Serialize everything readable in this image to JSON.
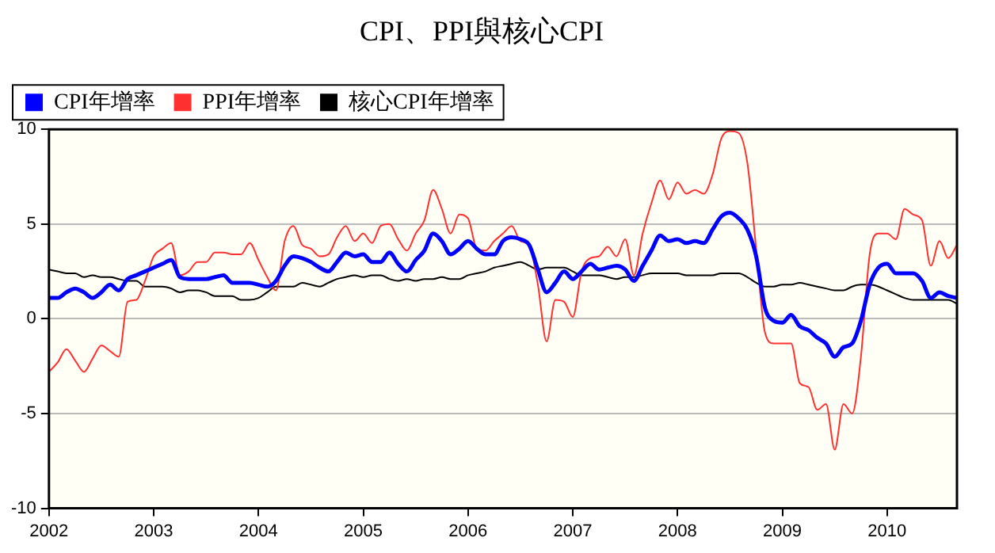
{
  "chart_data": {
    "type": "line",
    "title": "CPI、PPI與核心CPI",
    "x": [
      "2002-01",
      "2002-02",
      "2002-03",
      "2002-04",
      "2002-05",
      "2002-06",
      "2002-07",
      "2002-08",
      "2002-09",
      "2002-10",
      "2002-11",
      "2002-12",
      "2003-01",
      "2003-02",
      "2003-03",
      "2003-04",
      "2003-05",
      "2003-06",
      "2003-07",
      "2003-08",
      "2003-09",
      "2003-10",
      "2003-11",
      "2003-12",
      "2004-01",
      "2004-02",
      "2004-03",
      "2004-04",
      "2004-05",
      "2004-06",
      "2004-07",
      "2004-08",
      "2004-09",
      "2004-10",
      "2004-11",
      "2004-12",
      "2005-01",
      "2005-02",
      "2005-03",
      "2005-04",
      "2005-05",
      "2005-06",
      "2005-07",
      "2005-08",
      "2005-09",
      "2005-10",
      "2005-11",
      "2005-12",
      "2006-01",
      "2006-02",
      "2006-03",
      "2006-04",
      "2006-05",
      "2006-06",
      "2006-07",
      "2006-08",
      "2006-09",
      "2006-10",
      "2006-11",
      "2006-12",
      "2007-01",
      "2007-02",
      "2007-03",
      "2007-04",
      "2007-05",
      "2007-06",
      "2007-07",
      "2007-08",
      "2007-09",
      "2007-10",
      "2007-11",
      "2007-12",
      "2008-01",
      "2008-02",
      "2008-03",
      "2008-04",
      "2008-05",
      "2008-06",
      "2008-07",
      "2008-08",
      "2008-09",
      "2008-10",
      "2008-11",
      "2008-12",
      "2009-01",
      "2009-02",
      "2009-03",
      "2009-04",
      "2009-05",
      "2009-06",
      "2009-07",
      "2009-08",
      "2009-09",
      "2009-10",
      "2009-11",
      "2009-12",
      "2010-01",
      "2010-02",
      "2010-03",
      "2010-04",
      "2010-05",
      "2010-06",
      "2010-07",
      "2010-08",
      "2010-09"
    ],
    "series": [
      {
        "name": "CPI年增率",
        "color": "#0000ff",
        "values": [
          1.1,
          1.1,
          1.4,
          1.6,
          1.4,
          1.1,
          1.4,
          1.8,
          1.5,
          2.1,
          2.3,
          2.5,
          2.7,
          2.9,
          3.1,
          2.2,
          2.1,
          2.1,
          2.1,
          2.2,
          2.3,
          1.9,
          1.9,
          1.9,
          1.8,
          1.7,
          2.0,
          2.8,
          3.3,
          3.2,
          3.0,
          2.7,
          2.5,
          3.0,
          3.5,
          3.3,
          3.4,
          3.0,
          3.0,
          3.5,
          2.9,
          2.5,
          3.1,
          3.6,
          4.5,
          4.1,
          3.4,
          3.7,
          4.1,
          3.7,
          3.4,
          3.4,
          4.1,
          4.3,
          4.2,
          3.9,
          2.6,
          1.4,
          1.9,
          2.5,
          2.1,
          2.5,
          2.9,
          2.6,
          2.7,
          2.8,
          2.6,
          2.0,
          2.8,
          3.6,
          4.4,
          4.1,
          4.2,
          4.0,
          4.1,
          4.0,
          4.7,
          5.4,
          5.6,
          5.3,
          4.7,
          3.3,
          0.6,
          -0.1,
          -0.2,
          0.2,
          -0.4,
          -0.6,
          -1.0,
          -1.3,
          -2.0,
          -1.5,
          -1.3,
          -0.1,
          1.8,
          2.7,
          2.9,
          2.4,
          2.4,
          2.4,
          2.0,
          1.1,
          1.4,
          1.2,
          1.1
        ]
      },
      {
        "name": "PPI年增率",
        "color": "#ff3030",
        "values": [
          -2.8,
          -2.3,
          -1.6,
          -2.2,
          -2.8,
          -2.1,
          -1.4,
          -1.7,
          -2.0,
          0.9,
          1.0,
          2.0,
          3.3,
          3.7,
          4.0,
          2.3,
          2.5,
          3.0,
          3.0,
          3.5,
          3.5,
          3.4,
          3.4,
          4.0,
          3.1,
          2.2,
          1.5,
          4.1,
          4.9,
          3.9,
          3.7,
          3.3,
          3.4,
          4.3,
          4.9,
          4.1,
          4.5,
          4.0,
          4.9,
          5.0,
          4.2,
          3.6,
          4.5,
          5.2,
          6.8,
          5.8,
          4.5,
          5.5,
          5.3,
          3.7,
          3.6,
          4.1,
          4.5,
          4.9,
          4.1,
          3.9,
          1.8,
          -1.2,
          1.0,
          0.9,
          0.1,
          2.5,
          3.2,
          3.3,
          3.8,
          3.3,
          4.2,
          2.3,
          4.5,
          6.1,
          7.3,
          6.3,
          7.2,
          6.6,
          6.8,
          6.6,
          7.6,
          9.5,
          9.9,
          9.8,
          8.2,
          3.7,
          -0.7,
          -1.3,
          -1.3,
          -1.3,
          -3.4,
          -3.6,
          -4.8,
          -4.5,
          -6.9,
          -4.5,
          -5.0,
          -2.0,
          3.4,
          4.5,
          4.5,
          4.2,
          5.8,
          5.5,
          5.2,
          2.8,
          4.1,
          3.2,
          3.9
        ]
      },
      {
        "name": "核心CPI年增率",
        "color": "#000000",
        "values": [
          2.6,
          2.5,
          2.4,
          2.4,
          2.2,
          2.3,
          2.2,
          2.2,
          2.1,
          2.0,
          2.0,
          1.7,
          1.7,
          1.7,
          1.6,
          1.4,
          1.5,
          1.5,
          1.4,
          1.2,
          1.2,
          1.2,
          1.0,
          1.0,
          1.1,
          1.4,
          1.7,
          1.7,
          1.7,
          1.9,
          1.8,
          1.7,
          1.9,
          2.1,
          2.2,
          2.3,
          2.2,
          2.3,
          2.3,
          2.1,
          2.0,
          2.1,
          2.0,
          2.1,
          2.1,
          2.2,
          2.1,
          2.1,
          2.3,
          2.4,
          2.5,
          2.7,
          2.8,
          2.9,
          3.0,
          2.8,
          2.6,
          2.7,
          2.7,
          2.7,
          2.5,
          2.3,
          2.3,
          2.3,
          2.2,
          2.1,
          2.2,
          2.2,
          2.3,
          2.4,
          2.4,
          2.4,
          2.4,
          2.3,
          2.3,
          2.3,
          2.3,
          2.4,
          2.4,
          2.4,
          2.2,
          1.9,
          1.7,
          1.7,
          1.8,
          1.8,
          1.9,
          1.8,
          1.7,
          1.6,
          1.5,
          1.5,
          1.7,
          1.8,
          1.8,
          1.7,
          1.5,
          1.3,
          1.1,
          1.0,
          1.0,
          1.0,
          1.0,
          1.0,
          0.8
        ]
      }
    ],
    "xlim": [
      "2002-01",
      "2010-09"
    ],
    "xticks": [
      {
        "value": "2002",
        "label": "2002"
      },
      {
        "value": "2003",
        "label": "2003"
      },
      {
        "value": "2004",
        "label": "2004"
      },
      {
        "value": "2005",
        "label": "2005"
      },
      {
        "value": "2006",
        "label": "2006"
      },
      {
        "value": "2007",
        "label": "2007"
      },
      {
        "value": "2008",
        "label": "2008"
      },
      {
        "value": "2009",
        "label": "2009"
      },
      {
        "value": "2010",
        "label": "2010"
      }
    ],
    "ylim": [
      -10,
      10
    ],
    "yticks": [
      -10,
      -5,
      0,
      5,
      10
    ],
    "grid": "y",
    "legend": "top left",
    "marker": "none",
    "line_style": "solid"
  }
}
